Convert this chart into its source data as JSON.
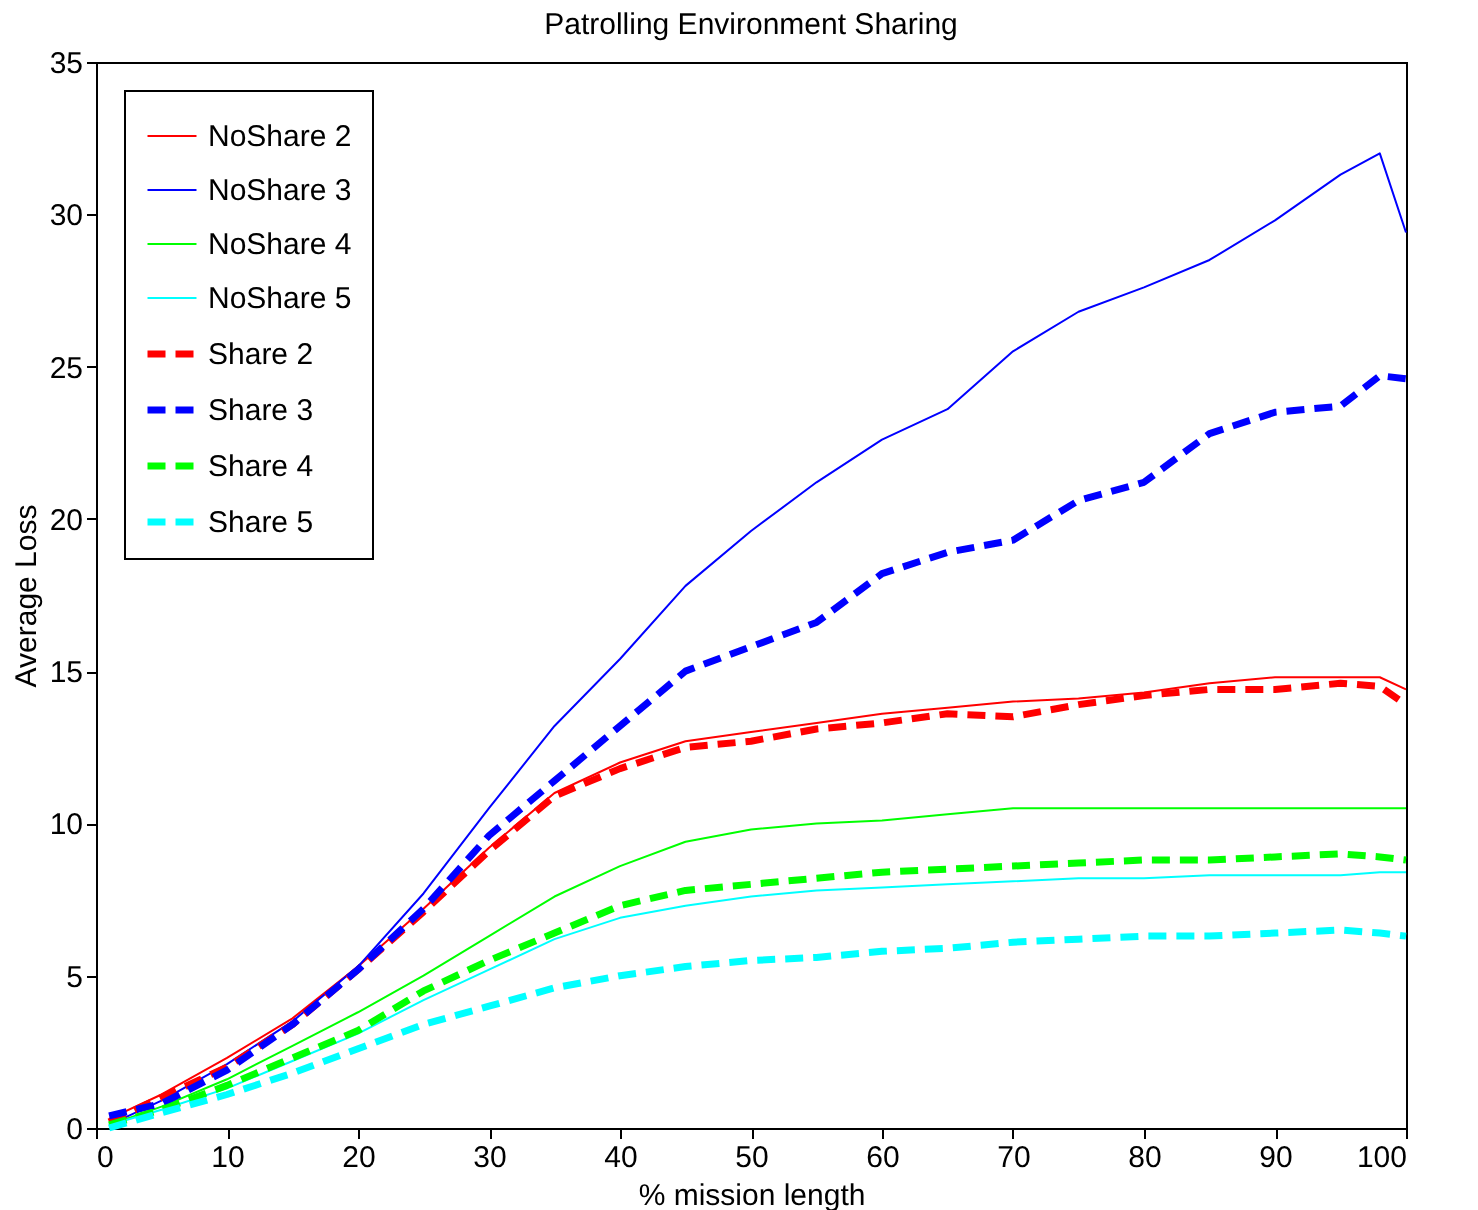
{
  "chart_data": {
    "type": "line",
    "title": "Patrolling Environment Sharing",
    "xlabel": "% mission length",
    "ylabel": "Average Loss",
    "x": [
      1,
      5,
      10,
      15,
      20,
      25,
      30,
      35,
      40,
      45,
      50,
      55,
      60,
      65,
      70,
      75,
      80,
      85,
      90,
      95,
      98,
      100
    ],
    "xlim": [
      0,
      100
    ],
    "xticks": [
      0,
      10,
      20,
      30,
      40,
      50,
      60,
      70,
      80,
      90,
      100
    ],
    "ylim": [
      0,
      35
    ],
    "yticks": [
      0,
      5,
      10,
      15,
      20,
      25,
      30,
      35
    ],
    "grid": false,
    "legend": "top left",
    "marker": "none",
    "series": [
      {
        "name": "NoShare 2",
        "color": "#ff0000",
        "line_style": "solid",
        "values": [
          0.3,
          1.1,
          2.3,
          3.6,
          5.3,
          7.2,
          9.2,
          11.0,
          12.0,
          12.7,
          13.0,
          13.3,
          13.6,
          13.8,
          14.0,
          14.1,
          14.3,
          14.6,
          14.8,
          14.8,
          14.8,
          14.4
        ]
      },
      {
        "name": "NoShare 3",
        "color": "#0000ff",
        "line_style": "solid",
        "values": [
          0.1,
          0.9,
          2.1,
          3.5,
          5.3,
          7.7,
          10.5,
          13.2,
          15.4,
          17.8,
          19.6,
          21.2,
          22.6,
          23.6,
          25.5,
          26.8,
          27.6,
          28.5,
          29.8,
          31.3,
          32.0,
          29.4
        ]
      },
      {
        "name": "NoShare 4",
        "color": "#00ff00",
        "line_style": "solid",
        "values": [
          0.1,
          0.7,
          1.6,
          2.7,
          3.8,
          5.0,
          6.3,
          7.6,
          8.6,
          9.4,
          9.8,
          10.0,
          10.1,
          10.3,
          10.5,
          10.5,
          10.5,
          10.5,
          10.5,
          10.5,
          10.5,
          10.5
        ]
      },
      {
        "name": "NoShare 5",
        "color": "#00ffff",
        "line_style": "solid",
        "values": [
          0.1,
          0.6,
          1.3,
          2.2,
          3.1,
          4.2,
          5.2,
          6.2,
          6.9,
          7.3,
          7.6,
          7.8,
          7.9,
          8.0,
          8.1,
          8.2,
          8.2,
          8.3,
          8.3,
          8.3,
          8.4,
          8.4
        ]
      },
      {
        "name": "Share 2",
        "color": "#ff0000",
        "line_style": "dashed",
        "values": [
          0.2,
          1.0,
          2.0,
          3.4,
          5.2,
          7.1,
          9.1,
          10.9,
          11.8,
          12.5,
          12.7,
          13.1,
          13.3,
          13.6,
          13.5,
          13.9,
          14.2,
          14.4,
          14.4,
          14.6,
          14.5,
          13.9
        ]
      },
      {
        "name": "Share 3",
        "color": "#0000ff",
        "line_style": "dashed",
        "values": [
          0.4,
          0.8,
          1.9,
          3.4,
          5.2,
          7.2,
          9.6,
          11.4,
          13.2,
          15.0,
          15.8,
          16.6,
          18.2,
          18.9,
          19.3,
          20.6,
          21.2,
          22.8,
          23.5,
          23.7,
          24.7,
          24.6
        ]
      },
      {
        "name": "Share 4",
        "color": "#00ff00",
        "line_style": "dashed",
        "values": [
          0.1,
          0.6,
          1.4,
          2.3,
          3.2,
          4.5,
          5.5,
          6.4,
          7.3,
          7.8,
          8.0,
          8.2,
          8.4,
          8.5,
          8.6,
          8.7,
          8.8,
          8.8,
          8.9,
          9.0,
          8.9,
          8.8
        ]
      },
      {
        "name": "Share 5",
        "color": "#00ffff",
        "line_style": "dashed",
        "values": [
          0.0,
          0.5,
          1.1,
          1.8,
          2.6,
          3.4,
          4.0,
          4.6,
          5.0,
          5.3,
          5.5,
          5.6,
          5.8,
          5.9,
          6.1,
          6.2,
          6.3,
          6.3,
          6.4,
          6.5,
          6.4,
          6.3
        ]
      }
    ]
  }
}
